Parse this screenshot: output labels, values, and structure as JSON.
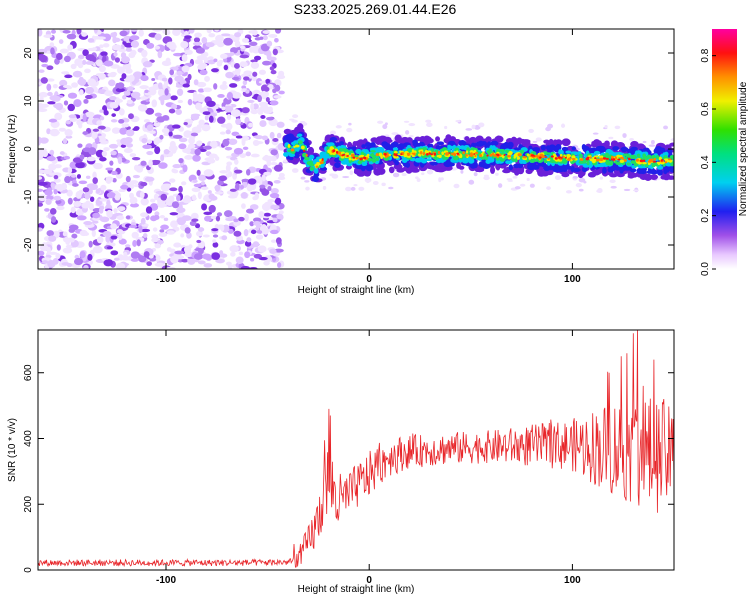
{
  "title": "S233.2025.269.01.44.E26",
  "chart_data": [
    {
      "type": "heatmap",
      "name": "spectrogram",
      "xlabel": "Height of straight line (km)",
      "ylabel": "Frequency (Hz)",
      "xlim": [
        -163,
        150
      ],
      "ylim": [
        -25,
        25
      ],
      "xticks": [
        "-100",
        "0",
        "100"
      ],
      "yticks": [
        "20",
        "10",
        "0",
        "-10",
        "-20"
      ],
      "noise_region_x": [
        -163,
        -43
      ],
      "signal_region_x": [
        -43,
        150
      ],
      "signal_center_hz": [
        [
          -43,
          0.5
        ],
        [
          -38,
          0
        ],
        [
          -34,
          1.5
        ],
        [
          -30,
          -2
        ],
        [
          -27,
          -4
        ],
        [
          -24,
          -3
        ],
        [
          -20,
          0
        ],
        [
          -15,
          -1
        ],
        [
          -10,
          -1.5
        ],
        [
          -5,
          -2
        ],
        [
          0,
          -1.5
        ],
        [
          10,
          -1.2
        ],
        [
          20,
          -1
        ],
        [
          40,
          -1
        ],
        [
          60,
          -1.2
        ],
        [
          80,
          -1.5
        ],
        [
          100,
          -2
        ],
        [
          120,
          -2
        ],
        [
          140,
          -2.5
        ],
        [
          150,
          -2.5
        ]
      ],
      "colorbar": {
        "label": "Normalized spectral amplitude",
        "ticks": [
          "0.0",
          "0.2",
          "0.4",
          "0.6",
          "0.8"
        ],
        "range": [
          0,
          0.9
        ]
      }
    },
    {
      "type": "line",
      "name": "snr",
      "xlabel": "Height of straight line (km)",
      "ylabel": "SNR (10 * v/v)",
      "xlim": [
        -163,
        150
      ],
      "ylim": [
        0,
        730
      ],
      "xticks": [
        "-100",
        "0",
        "100"
      ],
      "yticks": [
        "0",
        "200",
        "400",
        "600"
      ],
      "series": [
        {
          "name": "SNR",
          "color": "#e8262a",
          "envelope": [
            [
              -163,
              22
            ],
            [
              -60,
              22
            ],
            [
              -40,
              24
            ],
            [
              -35,
              35
            ],
            [
              -30,
              80
            ],
            [
              -25,
              150
            ],
            [
              -22,
              250
            ],
            [
              -20,
              280
            ],
            [
              -15,
              200
            ],
            [
              -10,
              230
            ],
            [
              -5,
              260
            ],
            [
              0,
              290
            ],
            [
              5,
              320
            ],
            [
              10,
              345
            ],
            [
              20,
              360
            ],
            [
              40,
              370
            ],
            [
              60,
              375
            ],
            [
              80,
              378
            ],
            [
              100,
              380
            ],
            [
              120,
              370
            ],
            [
              140,
              350
            ],
            [
              150,
              340
            ]
          ],
          "spread": [
            [
              -163,
              10
            ],
            [
              -40,
              10
            ],
            [
              -35,
              30
            ],
            [
              -25,
              80
            ],
            [
              -20,
              120
            ],
            [
              -10,
              70
            ],
            [
              0,
              70
            ],
            [
              20,
              50
            ],
            [
              60,
              50
            ],
            [
              100,
              80
            ],
            [
              120,
              150
            ],
            [
              140,
              180
            ],
            [
              150,
              150
            ]
          ],
          "peaks": [
            [
              -20,
              490
            ],
            [
              -19,
              470
            ],
            [
              118,
              600
            ],
            [
              124,
              650
            ],
            [
              130,
              720
            ],
            [
              132,
              740
            ],
            [
              135,
              560
            ],
            [
              140,
              640
            ],
            [
              145,
              520
            ]
          ]
        }
      ]
    }
  ]
}
